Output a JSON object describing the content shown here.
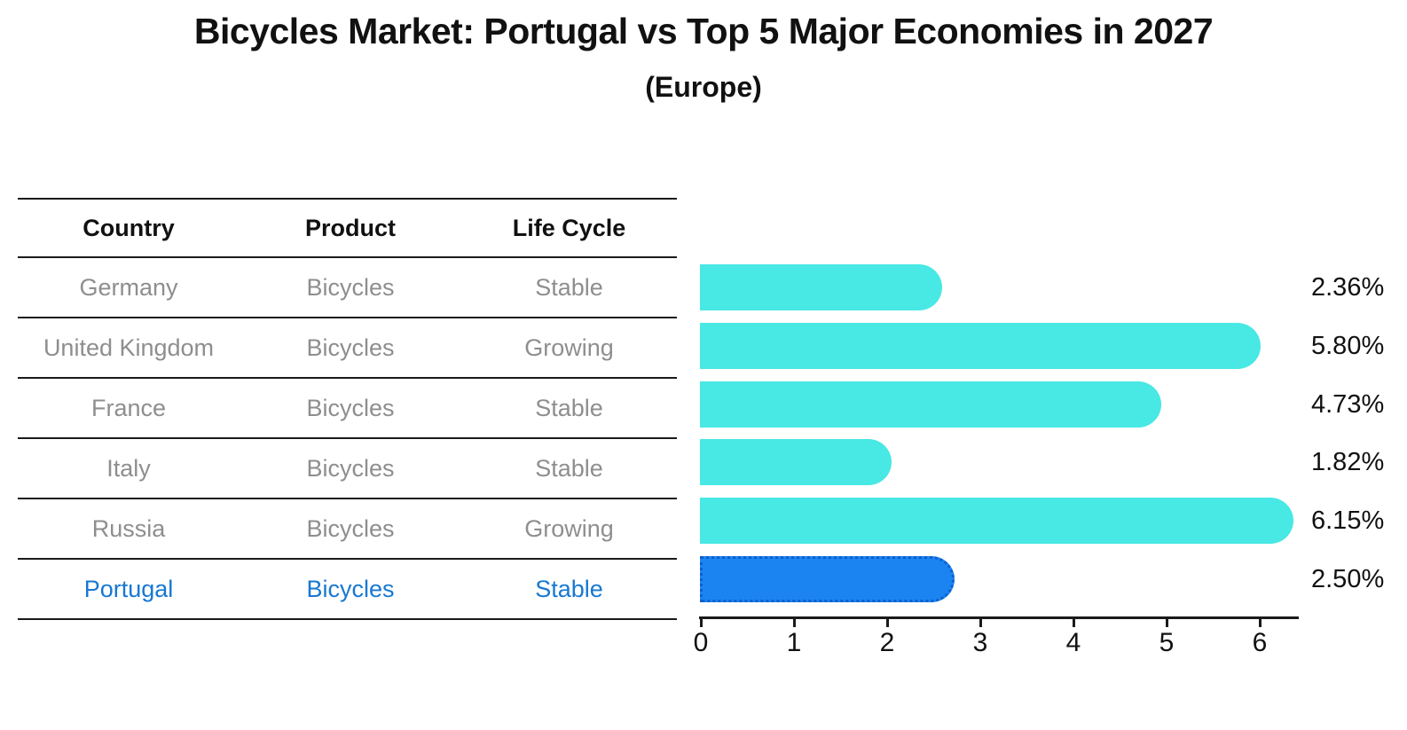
{
  "title": "Bicycles Market: Portugal vs Top 5 Major Economies in 2027",
  "subtitle": "(Europe)",
  "table": {
    "headers": [
      "Country",
      "Product",
      "Life Cycle"
    ],
    "rows": [
      {
        "country": "Germany",
        "product": "Bicycles",
        "life_cycle": "Stable",
        "highlight": false
      },
      {
        "country": "United Kingdom",
        "product": "Bicycles",
        "life_cycle": "Growing",
        "highlight": false
      },
      {
        "country": "France",
        "product": "Bicycles",
        "life_cycle": "Stable",
        "highlight": false
      },
      {
        "country": "Italy",
        "product": "Bicycles",
        "life_cycle": "Stable",
        "highlight": false
      },
      {
        "country": "Russia",
        "product": "Bicycles",
        "life_cycle": "Growing",
        "highlight": false
      },
      {
        "country": "Portugal",
        "product": "Bicycles",
        "life_cycle": "Stable",
        "highlight": true
      }
    ]
  },
  "chart_data": {
    "type": "bar",
    "orientation": "horizontal",
    "title": "Bicycles Market: Portugal vs Top 5 Major Economies in 2027",
    "subtitle": "(Europe)",
    "categories": [
      "Germany",
      "United Kingdom",
      "France",
      "Italy",
      "Russia",
      "Portugal"
    ],
    "values": [
      2.36,
      5.8,
      4.73,
      1.82,
      6.15,
      2.5
    ],
    "value_labels": [
      "2.36%",
      "5.80%",
      "4.73%",
      "1.82%",
      "6.15%",
      "2.50%"
    ],
    "highlight_category": "Portugal",
    "xlabel": "",
    "ylabel": "",
    "xlim": [
      0,
      6.45
    ],
    "x_ticks": [
      0,
      1,
      2,
      3,
      4,
      5,
      6
    ],
    "grid": false,
    "legend": false,
    "colors": {
      "bar_default": "#48e8e4",
      "bar_highlight": "#1b84f0",
      "bar_highlight_border": "#0d5fd0",
      "highlight_text": "#1778d2",
      "row_text": "#8e8e8e",
      "text": "#111111"
    }
  }
}
